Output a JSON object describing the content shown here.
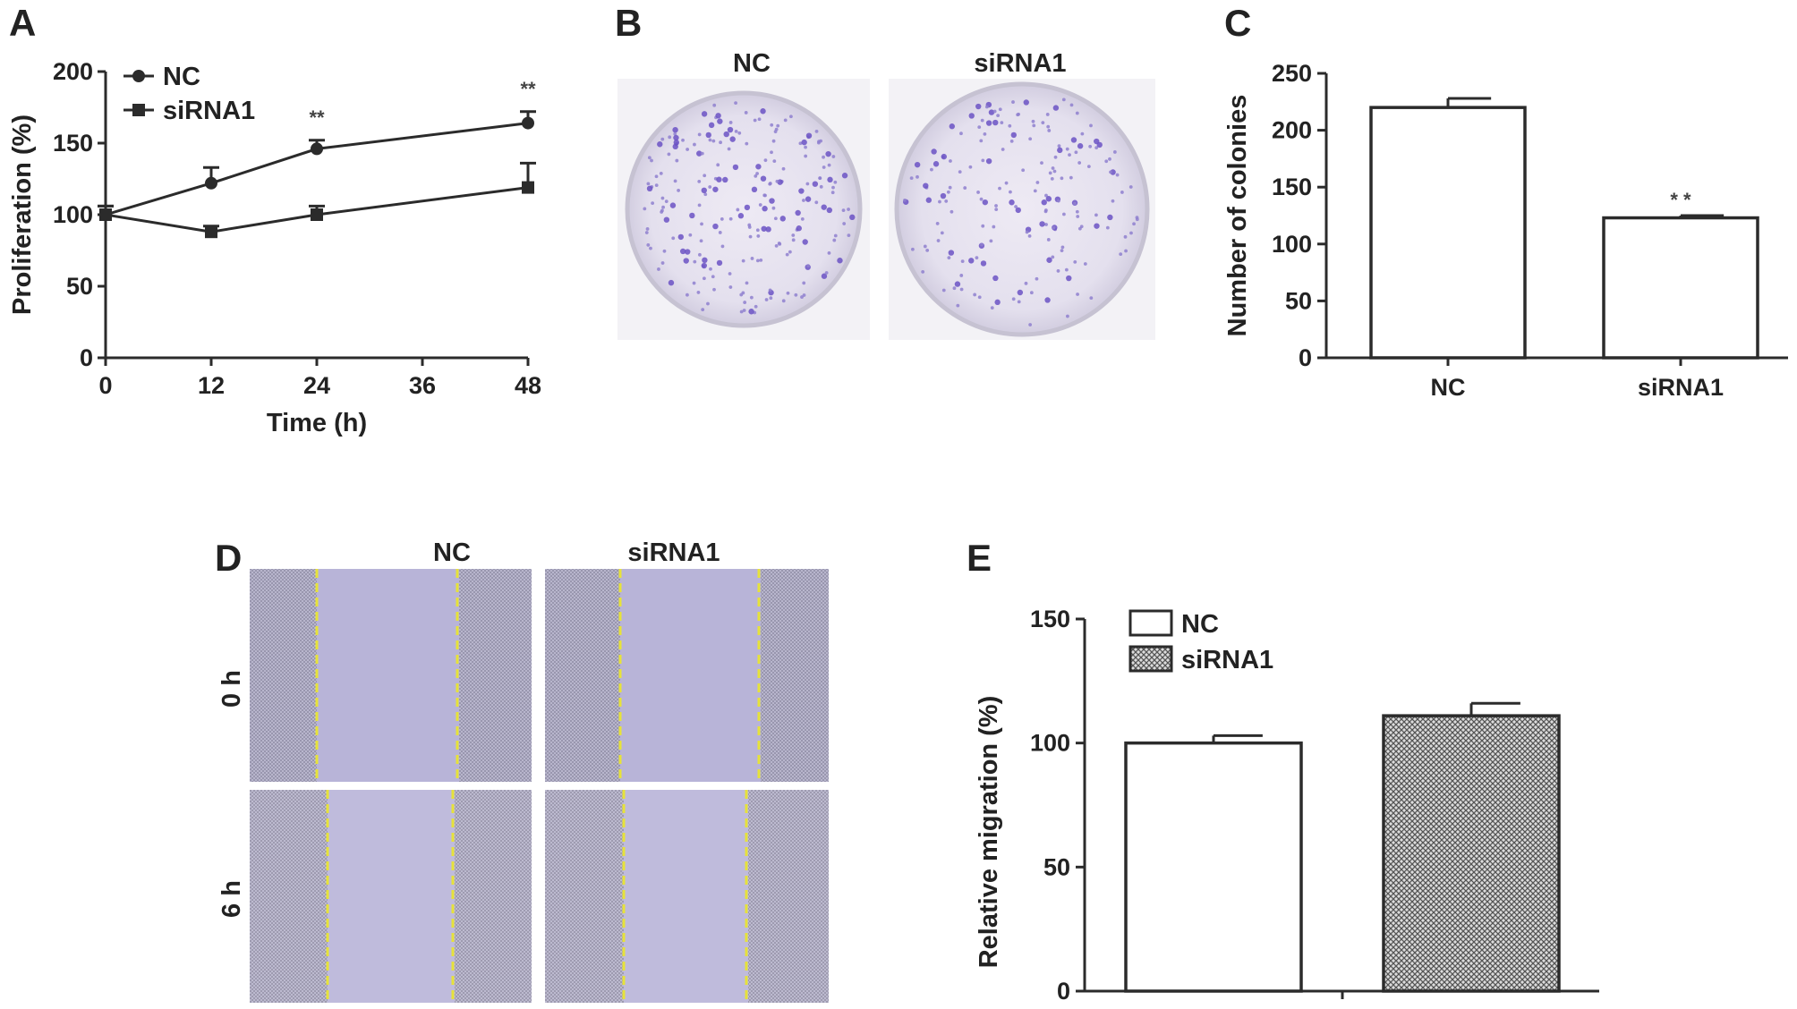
{
  "figure": {
    "panel_labels": [
      "A",
      "B",
      "C",
      "D",
      "E"
    ],
    "panel_b": {
      "columns": [
        "NC",
        "siRNA1"
      ]
    },
    "panel_d": {
      "columns": [
        "NC",
        "siRNA1"
      ],
      "rows": [
        "0 h",
        "6 h"
      ]
    }
  },
  "chart_data": [
    {
      "panel": "A",
      "type": "line",
      "xlabel": "Time (h)",
      "ylabel": "Proliferation (%)",
      "xlim": [
        0,
        48
      ],
      "ylim": [
        0,
        200
      ],
      "xticks": [
        "0",
        "12",
        "24",
        "36",
        "48"
      ],
      "yticks": [
        "0",
        "50",
        "100",
        "150",
        "200"
      ],
      "x": [
        0,
        12,
        24,
        48
      ],
      "legend_position": "top-left",
      "series": [
        {
          "name": "NC",
          "marker": "circle",
          "values": [
            100,
            122,
            146,
            164
          ],
          "errors": [
            6,
            11,
            6,
            8
          ]
        },
        {
          "name": "siRNA1",
          "marker": "square",
          "values": [
            100,
            88,
            100,
            119
          ],
          "errors": [
            6,
            4,
            6,
            17
          ]
        }
      ],
      "annotations": [
        {
          "x": 24,
          "text": "**"
        },
        {
          "x": 48,
          "text": "**"
        }
      ]
    },
    {
      "panel": "C",
      "type": "bar",
      "categories": [
        "NC",
        "siRNA1"
      ],
      "values": [
        220,
        123
      ],
      "errors": [
        8,
        2
      ],
      "ylabel": "Number of colonies",
      "ylim": [
        0,
        250
      ],
      "yticks": [
        "0",
        "50",
        "100",
        "150",
        "200",
        "250"
      ],
      "annotations": [
        {
          "category": "siRNA1",
          "text": "* *"
        }
      ]
    },
    {
      "panel": "E",
      "type": "bar",
      "categories": [
        "NC",
        "siRNA1"
      ],
      "values": [
        100,
        111
      ],
      "errors": [
        3,
        5
      ],
      "ylabel": "Relative migration (%)",
      "ylim": [
        0,
        150
      ],
      "yticks": [
        "0",
        "50",
        "100",
        "150"
      ],
      "legend_position": "top-left",
      "series_styles": [
        {
          "name": "NC",
          "fill": "#ffffff"
        },
        {
          "name": "siRNA1",
          "fill": "crosshatch"
        }
      ]
    }
  ]
}
